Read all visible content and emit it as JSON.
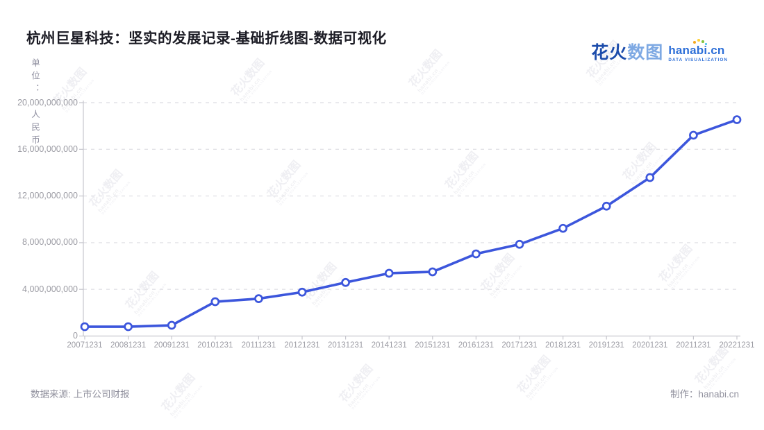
{
  "title": "杭州巨星科技：坚实的发展记录-基础折线图-数据可视化",
  "logo": {
    "cn_bold": "花火",
    "cn_light": "数图",
    "domain": "hanabi.cn",
    "tagline": "DATA VISUALIZATION"
  },
  "watermark": {
    "cn": "花火数图",
    "en": "hanabi.cn",
    "tagline": "DATA VISUALIZATION"
  },
  "footer": {
    "source": "数据来源: 上市公司财报",
    "credit": "制作：hanabi.cn"
  },
  "chart_data": {
    "type": "line",
    "title": "杭州巨星科技：坚实的发展记录-基础折线图-数据可视化",
    "unit_label": "单位：人民币",
    "categories": [
      "20071231",
      "20081231",
      "20091231",
      "20101231",
      "20111231",
      "20121231",
      "20131231",
      "20141231",
      "20151231",
      "20161231",
      "20171231",
      "20181231",
      "20191231",
      "20201231",
      "20211231",
      "20221231"
    ],
    "values": [
      800000000,
      800000000,
      920000000,
      2940000000,
      3200000000,
      3760000000,
      4590000000,
      5380000000,
      5500000000,
      7040000000,
      7860000000,
      9230000000,
      11130000000,
      13580000000,
      17210000000,
      18540000000
    ],
    "yticks": [
      0,
      4000000000,
      8000000000,
      12000000000,
      16000000000,
      20000000000
    ],
    "ylim": [
      0,
      20000000000
    ],
    "grid": true,
    "legend": "none",
    "line_color": "#3C56DC",
    "marker": "open-circle",
    "source_note": "数据来源: 上市公司财报"
  },
  "colors": {
    "line": "#3C56DC",
    "marker_fill": "#ffffff",
    "grid": "#e2e2e7",
    "axis": "#c6c6cd",
    "title_text": "#1b1b24",
    "tick_text": "#9b9ba3",
    "unit_text": "#8f8fa0",
    "footer_text": "#91919e",
    "logo_dark_blue": "#1c4cab",
    "logo_light_blue": "#7ea9e3",
    "logo_domain_blue": "#2d6fd8"
  }
}
